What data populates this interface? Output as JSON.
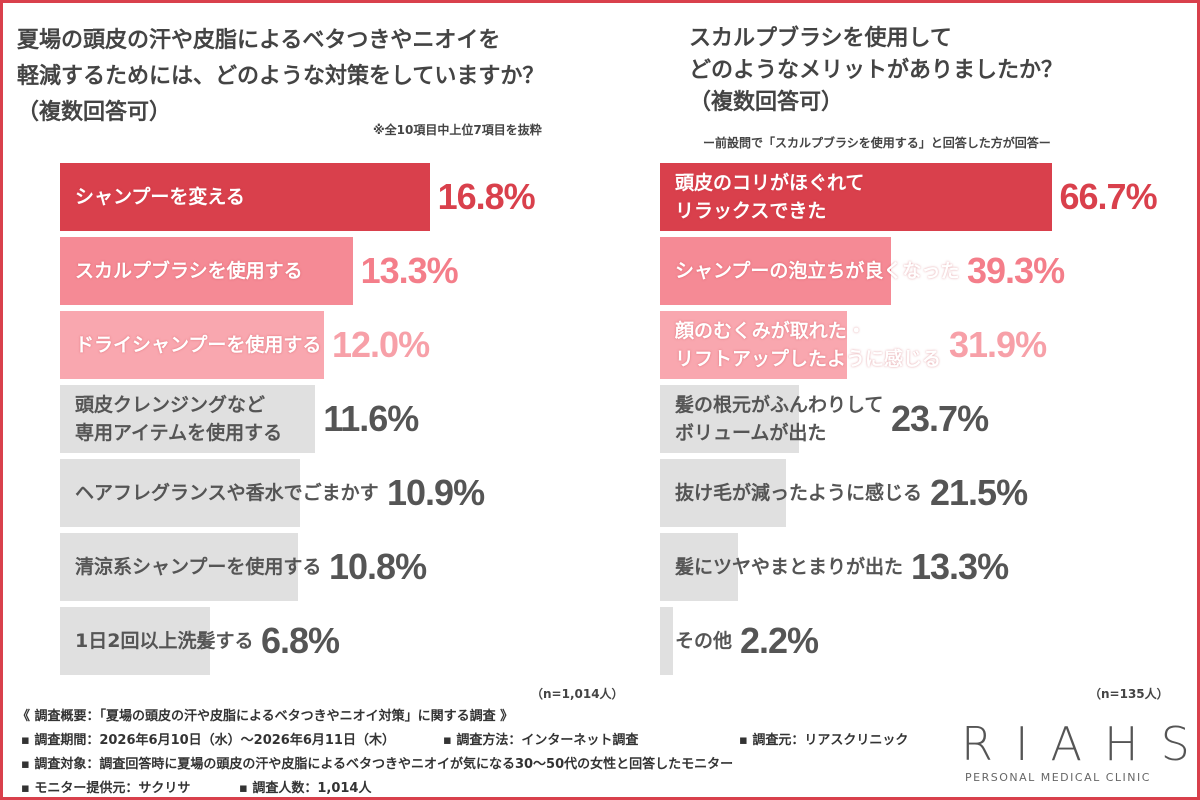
{
  "chart_data": [
    {
      "type": "bar",
      "orientation": "horizontal",
      "title": "夏場の頭皮の汗や皮脂によるベタつきやニオイを\n軽減するためには、どのような対策をしていますか？\n（複数回答可）",
      "note": "※全10項目中上位7項目を抜粋",
      "sample_size": "（n=1,014人）",
      "categories": [
        "シャンプーを変える",
        "スカルプブラシを使用する",
        "ドライシャンプーを使用する",
        "頭皮クレンジングなど\n専用アイテムを使用する",
        "ヘアフレグランスや香水でごまかす",
        "清涼系シャンプーを使用する",
        "1日2回以上洗髪する"
      ],
      "values": [
        16.8,
        13.3,
        12.0,
        11.6,
        10.9,
        10.8,
        6.8
      ],
      "value_labels": [
        "16.8%",
        "13.3%",
        "12.0%",
        "11.6%",
        "10.9%",
        "10.8%",
        "6.8%"
      ],
      "colors": [
        "#d9404c",
        "#f58a95",
        "#f9a7af",
        "#e0e0e0",
        "#e0e0e0",
        "#e0e0e0",
        "#e0e0e0"
      ],
      "text_colors": [
        "#ffffff",
        "#ffffff",
        "#ffffff",
        "#555555",
        "#555555",
        "#555555",
        "#555555"
      ],
      "label_colors": [
        "#d9404c",
        "#f47e8a",
        "#f7a0a8",
        "#555555",
        "#555555",
        "#555555",
        "#555555"
      ]
    },
    {
      "type": "bar",
      "orientation": "horizontal",
      "title": "スカルプブラシを使用して\nどのようなメリットがありましたか？\n（複数回答可）",
      "note": "ー前設問で「スカルプブラシを使用する」と回答した方が回答ー",
      "sample_size": "（n=135人）",
      "categories": [
        "頭皮のコリがほぐれて\nリラックスできた",
        "シャンプーの泡立ちが良くなった",
        "顔のむくみが取れた・\nリフトアップしたように感じる",
        "髪の根元がふんわりして\nボリュームが出た",
        "抜け毛が減ったように感じる",
        "髪にツヤやまとまりが出た",
        "その他"
      ],
      "values": [
        66.7,
        39.3,
        31.9,
        23.7,
        21.5,
        13.3,
        2.2
      ],
      "value_labels": [
        "66.7%",
        "39.3%",
        "31.9%",
        "23.7%",
        "21.5%",
        "13.3%",
        "2.2%"
      ],
      "colors": [
        "#d9404c",
        "#f58a95",
        "#f9a7af",
        "#e0e0e0",
        "#e0e0e0",
        "#e0e0e0",
        "#e0e0e0"
      ],
      "text_colors": [
        "#ffffff",
        "#ffffff",
        "#ffffff",
        "#555555",
        "#555555",
        "#555555",
        "#555555"
      ],
      "label_colors": [
        "#d9404c",
        "#f47e8a",
        "#f7a0a8",
        "#555555",
        "#555555",
        "#555555",
        "#555555"
      ]
    }
  ],
  "footer": {
    "heading": "《 調査概要：「夏場の頭皮の汗や皮脂によるベタつきやニオイ対策」に関する調査 》",
    "items": [
      "▪ 調査期間：2026年6月10日（水）～2026年6月11日（木）",
      "▪ 調査方法：インターネット調査",
      "▪ 調査元：リアスクリニック",
      "▪ 調査対象：調査回答時に夏場の頭皮の汗や皮脂によるベタつきやニオイが気になる30〜50代の女性と回答したモニター",
      "▪ モニター提供元：サクリサ",
      "▪ 調査人数：1,014人"
    ]
  },
  "logo": {
    "name": "RIAHS",
    "tagline": "PERSONAL MEDICAL CLINIC"
  }
}
